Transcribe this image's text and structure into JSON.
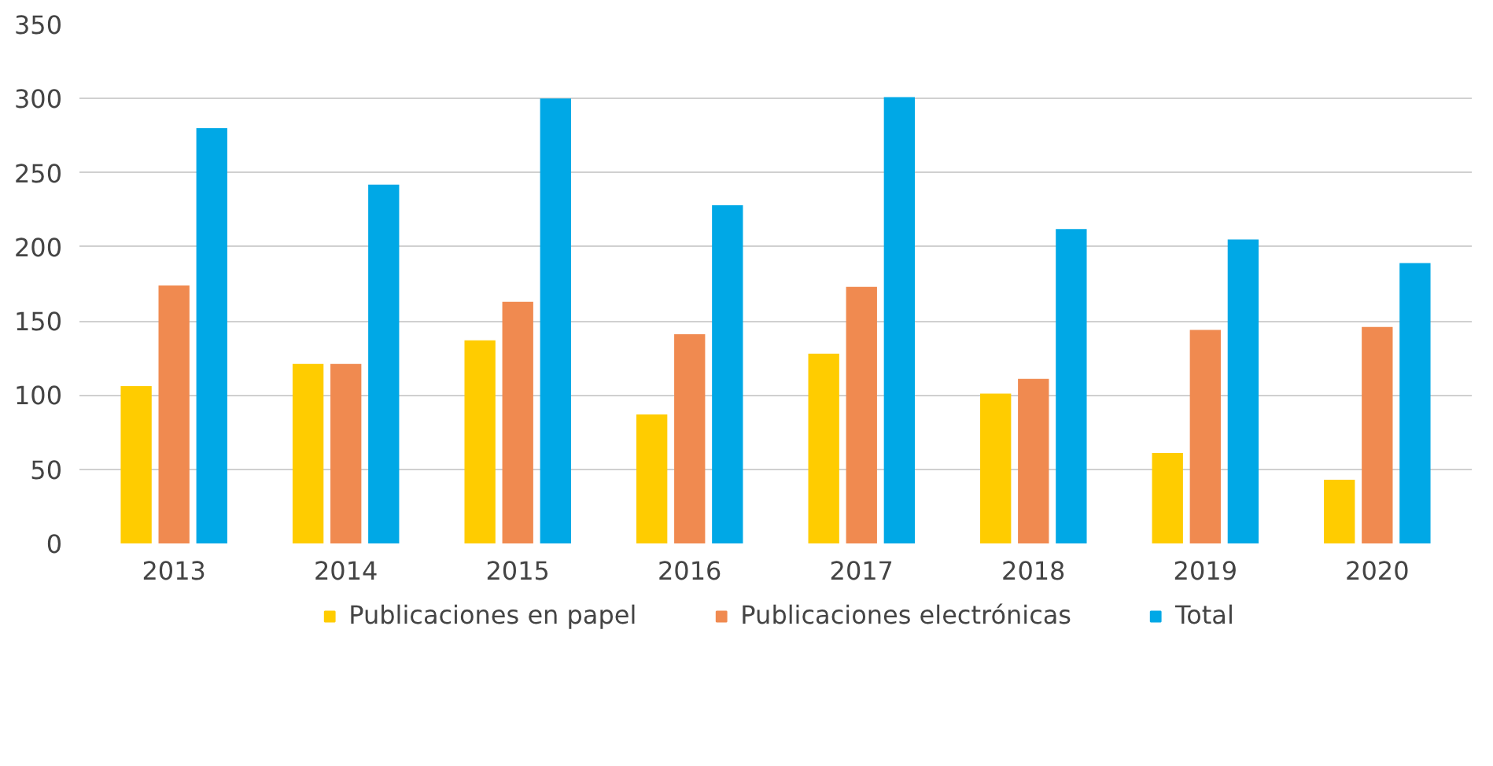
{
  "chart_data": {
    "type": "bar",
    "categories": [
      "2013",
      "2014",
      "2015",
      "2016",
      "2017",
      "2018",
      "2019",
      "2020"
    ],
    "series": [
      {
        "name": "Publicaciones en papel",
        "color": "#ffcc00",
        "values": [
          106,
          121,
          137,
          87,
          128,
          101,
          61,
          43
        ]
      },
      {
        "name": "Publicaciones electrónicas",
        "color": "#f08a50",
        "values": [
          174,
          121,
          163,
          141,
          173,
          111,
          144,
          146
        ]
      },
      {
        "name": "Total",
        "color": "#00a8e6",
        "values": [
          280,
          242,
          300,
          228,
          301,
          212,
          205,
          189
        ]
      }
    ],
    "ylim": [
      0,
      350
    ],
    "yticks": [
      0,
      50,
      100,
      150,
      200,
      250,
      300,
      350
    ],
    "grid": "y",
    "legend": "bottom"
  }
}
